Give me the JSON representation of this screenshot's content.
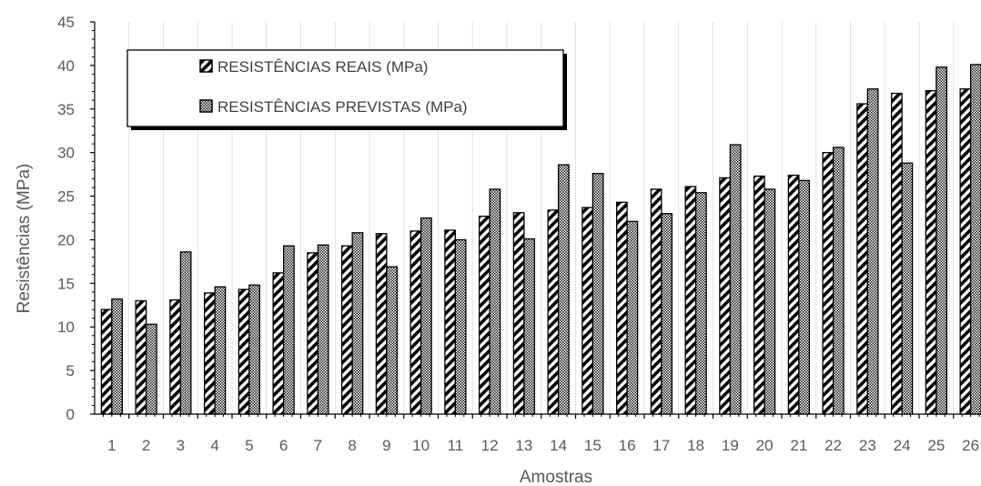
{
  "chart_data": {
    "type": "bar",
    "title": "",
    "xlabel": "Amostras",
    "ylabel": "Resistências (MPa)",
    "ylim": [
      0,
      45
    ],
    "yticks": [
      "0",
      "5",
      "10",
      "15",
      "20",
      "25",
      "30",
      "35",
      "40",
      "45"
    ],
    "categories": [
      "1",
      "2",
      "3",
      "4",
      "5",
      "6",
      "7",
      "8",
      "9",
      "10",
      "11",
      "12",
      "13",
      "14",
      "15",
      "16",
      "17",
      "18",
      "19",
      "20",
      "21",
      "22",
      "23",
      "24",
      "25",
      "26"
    ],
    "grid": true,
    "legend_position": "top-left",
    "series": [
      {
        "name": "RESISTÊNCIAS REAIS (MPa)",
        "values": [
          12.0,
          13.0,
          13.1,
          13.9,
          14.3,
          16.2,
          18.5,
          19.3,
          20.7,
          21.0,
          21.1,
          22.7,
          23.1,
          23.4,
          23.7,
          24.3,
          25.8,
          26.1,
          27.1,
          27.3,
          27.4,
          30.0,
          35.6,
          36.8,
          37.1,
          37.3
        ]
      },
      {
        "name": "RESISTÊNCIAS PREVISTAS (MPa)",
        "values": [
          13.2,
          10.3,
          18.6,
          14.6,
          14.8,
          19.3,
          19.4,
          20.8,
          16.9,
          22.5,
          20.0,
          25.8,
          20.1,
          28.6,
          27.6,
          22.1,
          23.0,
          25.4,
          30.9,
          25.8,
          26.8,
          30.6,
          37.3,
          28.8,
          39.8,
          40.1
        ]
      }
    ]
  }
}
